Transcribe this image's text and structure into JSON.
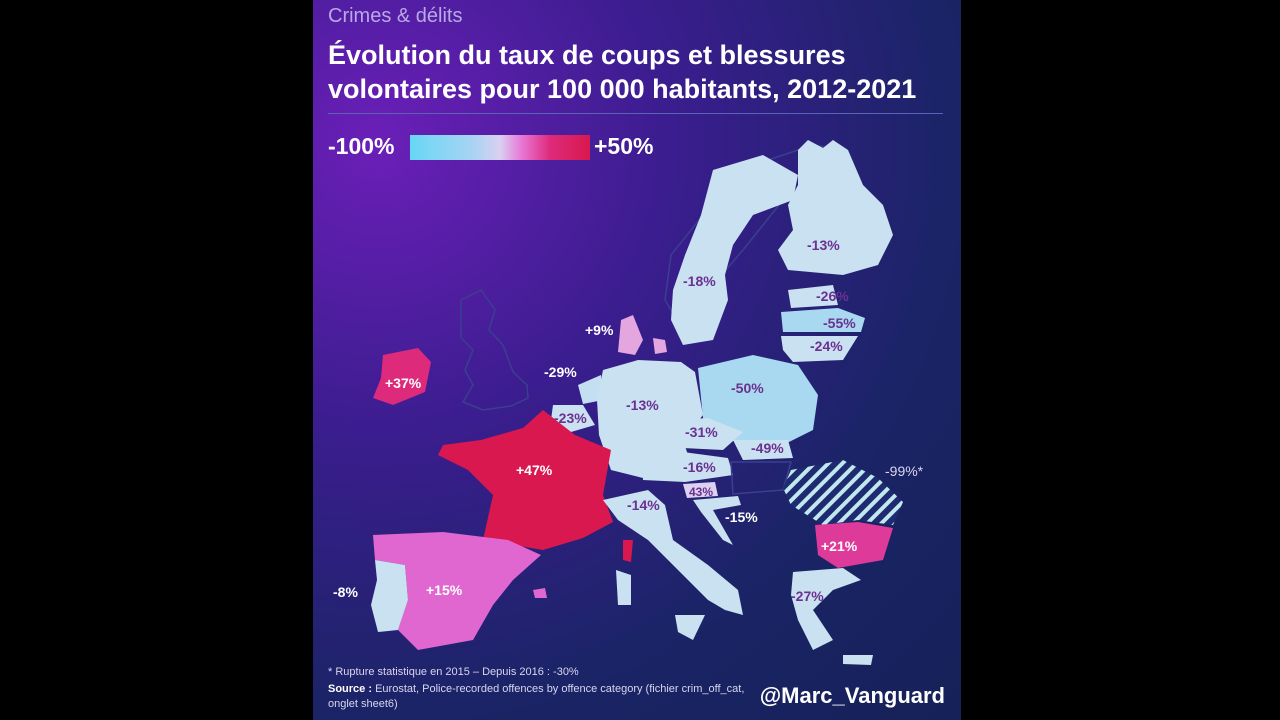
{
  "category": "Crimes & délits",
  "title": "Évolution du taux de coups et blessures volontaires pour 100 000 habitants, 2012-2021",
  "legend": {
    "min_label": "-100%",
    "max_label": "+50%",
    "min_value": -100,
    "max_value": 50
  },
  "colors": {
    "low": "#67d7f5",
    "neutral": "#cfe3f2",
    "mid_high": "#e877d6",
    "high": "#d8184e",
    "no_data": "#2a2f78"
  },
  "regions": [
    {
      "id": "finland",
      "label": "-13%",
      "value": -13
    },
    {
      "id": "sweden",
      "label": "-18%",
      "value": -18
    },
    {
      "id": "denmark",
      "label": "+9%",
      "value": 9
    },
    {
      "id": "estonia",
      "label": "-26%",
      "value": -26
    },
    {
      "id": "latvia",
      "label": "-55%",
      "value": -55
    },
    {
      "id": "lithuania",
      "label": "-24%",
      "value": -24
    },
    {
      "id": "ireland",
      "label": "+37%",
      "value": 37
    },
    {
      "id": "netherlands",
      "label": "-29%",
      "value": -29
    },
    {
      "id": "belgium",
      "label": "-23%",
      "value": -23
    },
    {
      "id": "germany",
      "label": "-13%",
      "value": -13
    },
    {
      "id": "poland",
      "label": "-50%",
      "value": -50
    },
    {
      "id": "czechia",
      "label": "-31%",
      "value": -31
    },
    {
      "id": "slovakia",
      "label": "-49%",
      "value": -49
    },
    {
      "id": "austria",
      "label": "-16%",
      "value": -16
    },
    {
      "id": "slovenia",
      "label": "43%",
      "value": 43
    },
    {
      "id": "france",
      "label": "+47%",
      "value": 47
    },
    {
      "id": "italy",
      "label": "-14%",
      "value": -14
    },
    {
      "id": "croatia",
      "label": "-15%",
      "value": -15
    },
    {
      "id": "romania",
      "label": "-99%*",
      "value": -99
    },
    {
      "id": "bulgaria",
      "label": "+21%",
      "value": 21
    },
    {
      "id": "greece",
      "label": "-27%",
      "value": -27
    },
    {
      "id": "spain",
      "label": "+15%",
      "value": 15
    },
    {
      "id": "portugal",
      "label": "-8%",
      "value": -8
    }
  ],
  "footnote": "* Rupture statistique en 2015 – Depuis 2016 : -30%",
  "source": {
    "label": "Source :",
    "text": "Eurostat, Police-recorded offences by offence category (fichier crim_off_cat, onglet sheet6)"
  },
  "handle": "@Marc_Vanguard"
}
